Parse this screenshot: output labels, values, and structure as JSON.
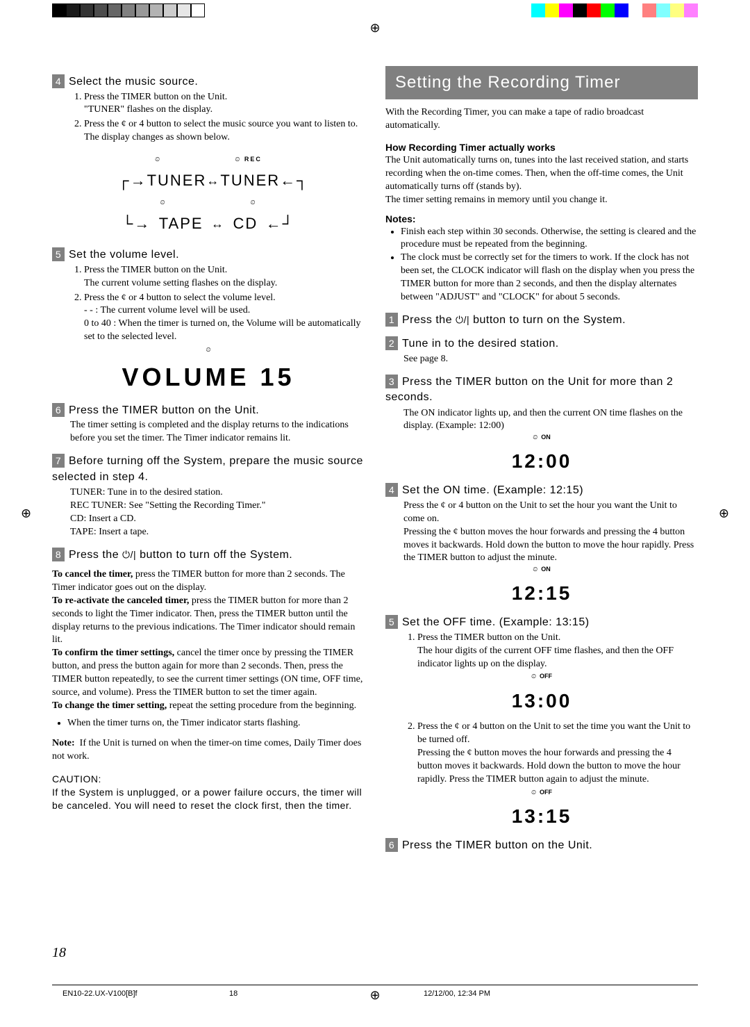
{
  "colorbar_left": [
    "#000000",
    "#1a1a1a",
    "#333333",
    "#4d4d4d",
    "#666666",
    "#808080",
    "#999999",
    "#b3b3b3",
    "#cccccc",
    "#e6e6e6",
    "#ffffff"
  ],
  "colorbar_right": [
    "#00ffff",
    "#ffff00",
    "#ff00ff",
    "#000000",
    "#ff0000",
    "#00ff00",
    "#0000ff",
    "#ffffff",
    "#ff8080",
    "#80ffff",
    "#ffff80",
    "#ff80ff"
  ],
  "left": {
    "step4": {
      "num": "4",
      "title": "Select the music source.",
      "li1": "Press the TIMER button on the Unit.",
      "li1b": "\"TUNER\" flashes on the display.",
      "li2": "Press the ¢    or 4    button to select the music source you want to listen to.",
      "li2b": "The display changes as shown below."
    },
    "diagram": {
      "tuner": "TUNER",
      "tape": "TAPE",
      "cd": "CD",
      "rec": "REC"
    },
    "step5": {
      "num": "5",
      "title": "Set the volume level.",
      "li1": "Press the TIMER button on the Unit.",
      "li1b": "The current volume setting flashes on the display.",
      "li2": "Press the ¢    or 4    button to select the volume level.",
      "li2a": "- -       : The current volume level will be used.",
      "li2b": "0 to 40 : When the timer is turned on, the Volume will be automatically set to the selected level."
    },
    "volume_display": "VOLUME 15",
    "step6": {
      "num": "6",
      "title": "Press the TIMER button on the Unit.",
      "body": "The timer setting is completed and the display returns to the indications before you set the timer. The Timer indicator remains lit."
    },
    "step7": {
      "num": "7",
      "title": "Before turning off the System, prepare the music source selected in step 4.",
      "l1": "TUNER: Tune in to the desired station.",
      "l2": "REC TUNER: See \"Setting the Recording Timer.\"",
      "l3": "CD: Insert a CD.",
      "l4": "TAPE: Insert a tape."
    },
    "step8": {
      "num": "8",
      "title_a": "Press the ",
      "title_b": " button to turn off the System."
    },
    "cancel_hdr": "To cancel the timer,",
    "cancel_body": " press the TIMER button for more than 2 seconds. The Timer indicator goes out on the display.",
    "react_hdr": "To re-activate the canceled timer,",
    "react_body": " press the TIMER button for more than 2 seconds to light the Timer indicator. Then, press the TIMER button until the display returns to the previous indications. The Timer indicator should remain lit.",
    "confirm_hdr": "To confirm the timer settings,",
    "confirm_body": " cancel the timer once by pressing the TIMER button, and press the button again for more than 2 seconds. Then, press the TIMER button repeatedly, to see the current timer settings (ON time, OFF time, source, and volume). Press the TIMER button to set the timer again.",
    "change_hdr": "To change the timer setting,",
    "change_body": " repeat the setting procedure from the beginning.",
    "bullet1": "When the timer turns on, the Timer indicator starts flashing.",
    "note_hdr": "Note:",
    "note_body": "If the Unit is turned on when the timer-on time comes, Daily Timer does not work.",
    "caution_hdr": "CAUTION:",
    "caution_body": "If the System is unplugged, or a power failure occurs, the timer will be canceled. You will need to reset the clock first, then the timer."
  },
  "right": {
    "banner": "Setting the Recording Timer",
    "intro": "With the Recording Timer, you can make a tape of radio broadcast automatically.",
    "how_hdr": "How Recording Timer actually works",
    "how_body": "The Unit automatically turns on, tunes into the last received station, and starts recording when the on-time comes. Then, when the off-time comes, the Unit automatically turns off (stands by).",
    "how_body2": "The timer setting remains in memory until you change it.",
    "notes_hdr": "Notes:",
    "note1": "Finish each step within 30 seconds. Otherwise, the setting is cleared and the procedure must be repeated from the beginning.",
    "note2": "The clock must be correctly set for the timers to work. If the clock has not been set, the CLOCK indicator will flash on the display when you press the TIMER button for more than 2 seconds, and then the display alternates between \"ADJUST\" and \"CLOCK\" for about 5 seconds.",
    "step1": {
      "num": "1",
      "title_a": "Press the ",
      "title_b": " button to turn on the System."
    },
    "step2": {
      "num": "2",
      "title": "Tune in to the desired station.",
      "body": "See page 8."
    },
    "step3": {
      "num": "3",
      "title": "Press the TIMER button on the Unit for more than 2 seconds.",
      "body": "The ON indicator lights up, and then the current ON time flashes on the display. (Example: 12:00)"
    },
    "disp_1200": "12:00",
    "on_ind": "ON",
    "step4": {
      "num": "4",
      "title": "Set the ON time. (Example: 12:15)",
      "body1": "Press the ¢    or 4    button on the Unit to set the hour you want the Unit to come on.",
      "body2": "Pressing the ¢    button moves the hour forwards and pressing the 4    button moves it backwards. Hold down the button to move the hour rapidly. Press the TIMER button to adjust the minute."
    },
    "disp_1215": "12:15",
    "step5": {
      "num": "5",
      "title": "Set the OFF time. (Example: 13:15)",
      "li1": "Press the TIMER button on the Unit.",
      "li1b": "The hour digits of the current OFF time flashes, and then the OFF indicator lights up on the display.",
      "li2": "Press the ¢    or 4    button on the Unit to set the time you want the Unit to be turned off.",
      "li2b": "Pressing the ¢    button moves the hour forwards and pressing the 4    button moves it backwards. Hold down the button to move the hour rapidly. Press the TIMER button again to adjust the minute."
    },
    "off_ind": "OFF",
    "disp_1300": "13:00",
    "disp_1315": "13:15",
    "step6": {
      "num": "6",
      "title": "Press the TIMER button on the Unit."
    }
  },
  "pagenum": "18",
  "footer_left": "EN10-22.UX-V100[B]f",
  "footer_mid": "18",
  "footer_right": "12/12/00, 12:34 PM"
}
